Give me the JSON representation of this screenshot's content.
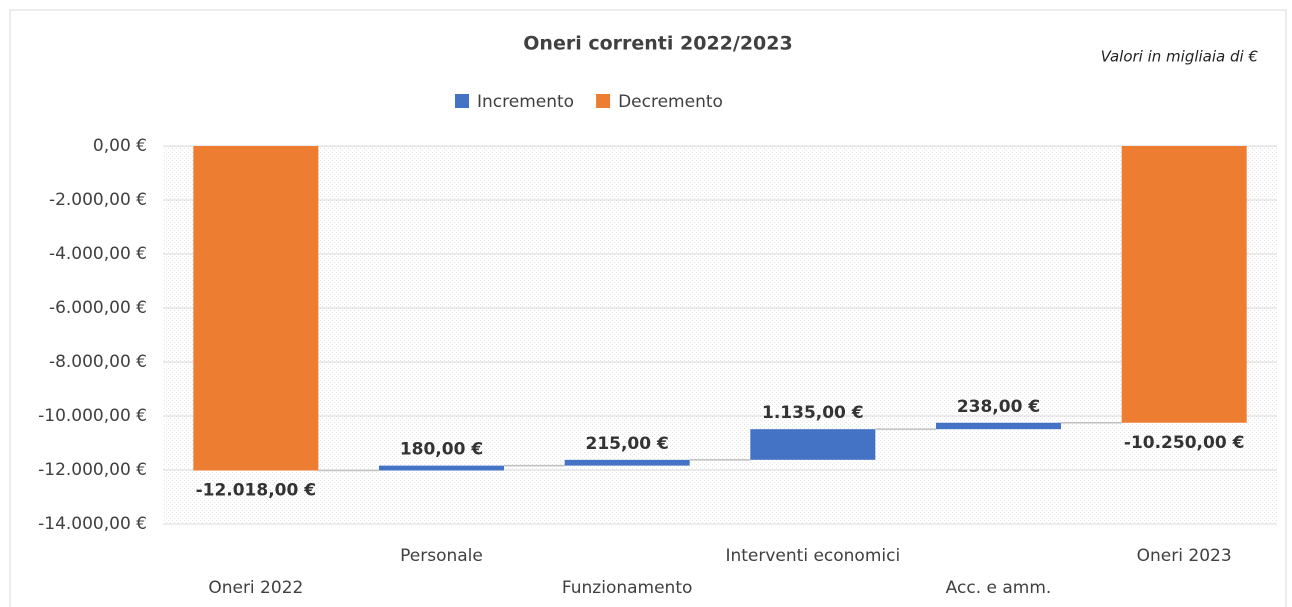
{
  "chart_data": {
    "type": "waterfall",
    "title": "Oneri correnti 2022/2023",
    "annotation": "Valori in migliaia di €",
    "categories": [
      "Oneri 2022",
      "Personale",
      "Funzionamento",
      "Interventi economici",
      "Acc. e amm.",
      "Oneri 2023"
    ],
    "series": [
      {
        "name": "Incremento",
        "color": "#4472c4",
        "values": [
          null,
          180,
          215,
          1135,
          238,
          null
        ],
        "value_labels": [
          null,
          "180,00 €",
          "215,00 €",
          "1.135,00 €",
          "238,00 €",
          null
        ]
      },
      {
        "name": "Decremento",
        "color": "#ed7d31",
        "values": [
          -12018,
          null,
          null,
          null,
          null,
          -10250
        ],
        "value_labels": [
          "-12.018,00 €",
          null,
          null,
          null,
          null,
          "-10.250,00 €"
        ]
      }
    ],
    "ylim": [
      -14000,
      0
    ],
    "yticks": [
      {
        "value": 0,
        "label": "0,00 €"
      },
      {
        "value": -2000,
        "label": "-2.000,00 €"
      },
      {
        "value": -4000,
        "label": "-4.000,00 €"
      },
      {
        "value": -6000,
        "label": "-6.000,00 €"
      },
      {
        "value": -8000,
        "label": "-8.000,00 €"
      },
      {
        "value": -10000,
        "label": "-10.000,00 €"
      },
      {
        "value": -12000,
        "label": "-12.000,00 €"
      },
      {
        "value": -14000,
        "label": "-14.000,00 €"
      }
    ],
    "grid": true,
    "legend": "top"
  }
}
